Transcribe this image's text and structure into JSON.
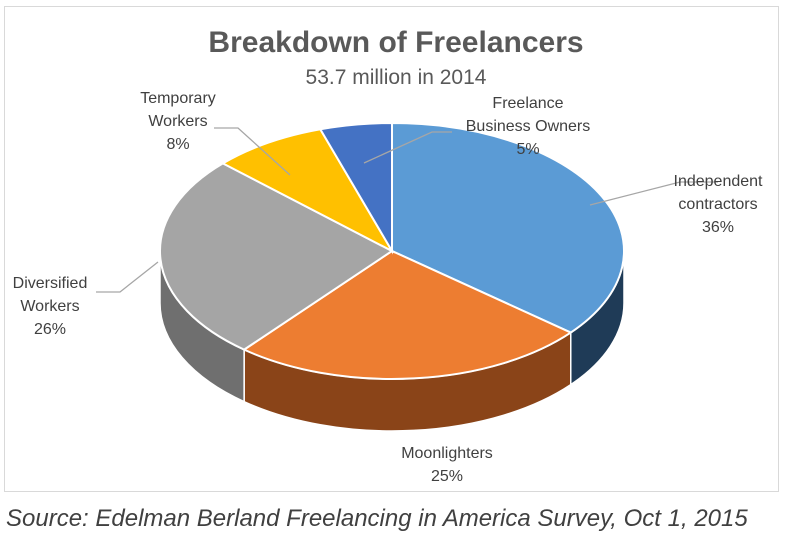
{
  "chart_data": {
    "type": "pie",
    "title": "Breakdown of Freelancers",
    "subtitle": "53.7 million in 2014",
    "slices": [
      {
        "label": [
          "Independent",
          "contractors"
        ],
        "value": 36,
        "pct_label": "36%",
        "color": "#5b9bd5",
        "side_color": "#1f3b57"
      },
      {
        "label": [
          "Moonlighters"
        ],
        "value": 25,
        "pct_label": "25%",
        "color": "#ed7d31",
        "side_color": "#8a4418"
      },
      {
        "label": [
          "Diversified",
          "Workers"
        ],
        "value": 26,
        "pct_label": "26%",
        "color": "#a5a5a5",
        "side_color": "#6f6f6f"
      },
      {
        "label": [
          "Temporary",
          "Workers"
        ],
        "value": 8,
        "pct_label": "8%",
        "color": "#ffc000",
        "side_color": "#b38600"
      },
      {
        "label": [
          "Freelance",
          "Business Owners"
        ],
        "value": 5,
        "pct_label": "5%",
        "color": "#4472c4",
        "side_color": "#2a4a82"
      }
    ]
  },
  "source": "Source: Edelman Berland Freelancing in America Survey, Oct 1, 2015"
}
